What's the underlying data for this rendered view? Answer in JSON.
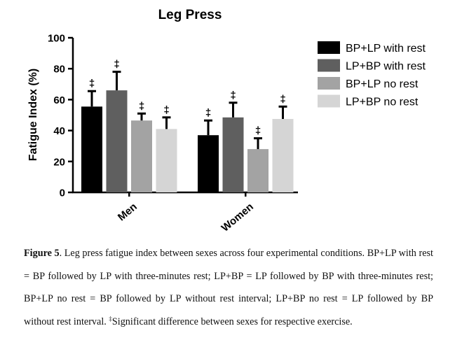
{
  "chart_data": {
    "type": "bar",
    "title": "Leg Press",
    "ylabel": "Fatigue Index (%)",
    "xlabel": "",
    "ylim": [
      0,
      100
    ],
    "yticks": [
      0,
      20,
      40,
      60,
      80,
      100
    ],
    "categories": [
      "Men",
      "Women"
    ],
    "series": [
      {
        "name": "BP+LP with rest",
        "color": "#000000",
        "values": [
          55.5,
          37
        ],
        "errors": [
          10,
          9.5
        ],
        "marks": [
          "‡",
          "‡"
        ]
      },
      {
        "name": "LP+BP with rest",
        "color": "#5f5f5f",
        "values": [
          66,
          48.5
        ],
        "errors": [
          12,
          9.5
        ],
        "marks": [
          "‡",
          "‡"
        ]
      },
      {
        "name": "BP+LP no rest",
        "color": "#a3a3a3",
        "values": [
          46.5,
          28
        ],
        "errors": [
          4.5,
          7
        ],
        "marks": [
          "‡",
          "‡"
        ]
      },
      {
        "name": "LP+BP no rest",
        "color": "#d5d5d5",
        "values": [
          41,
          47.5
        ],
        "errors": [
          7.5,
          8
        ],
        "marks": [
          "‡",
          "‡"
        ]
      }
    ],
    "legend": "right",
    "grid": false
  },
  "caption": {
    "label": "Figure 5",
    "text": ". Leg press fatigue index between sexes across four experimental conditions. BP+LP with rest = BP followed by LP with three-minutes rest; LP+BP = LP followed by BP with three-minutes rest; BP+LP no rest = BP followed by LP without rest interval; LP+BP no rest = LP followed by BP without rest interval. ",
    "symbol": "‡",
    "text2": "Significant difference between sexes for respective exercise."
  }
}
